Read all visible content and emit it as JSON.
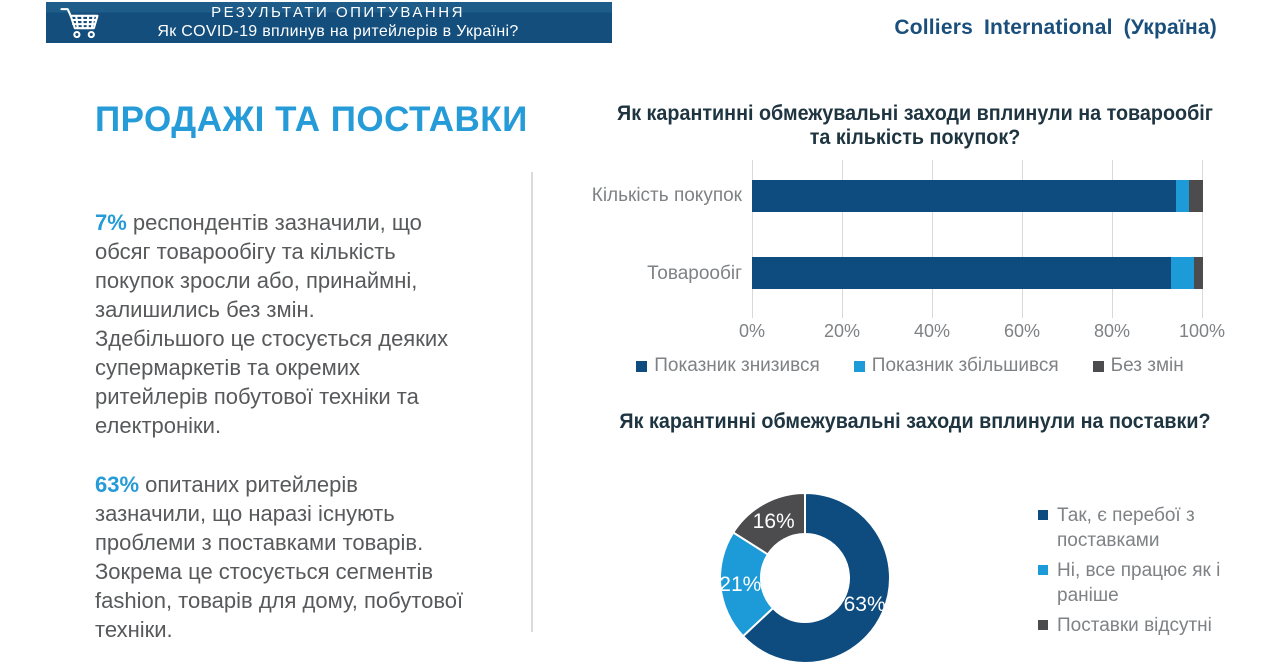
{
  "header": {
    "bar_line1": "РЕЗУЛЬТАТИ  ОПИТУВАННЯ",
    "bar_line2": "Як COVID-19  вплинув на ритейлерів  в Україні?",
    "cart_icon": "shopping-cart-icon",
    "logo": "Colliers  International  (Україна)"
  },
  "left": {
    "title": "ПРОДАЖІ ТА ПОСТАВКИ",
    "para1_highlight": "7%",
    "para1_text": " респондентів зазначили, що\nобсяг товарообігу та кількість\nпокупок зросли або, принаймні,\nзалишились без змін.\nЗдебільшого це стосується деяких\nсупермаркетів та окремих\nритейлерів побутової техніки та\nелектроніки.",
    "para2_highlight": "63%",
    "para2_text": " опитаних ритейлерів\nзазначили, що наразі існують\nпроблеми з поставками товарів.\nЗокрема це стосується сегментів\nfashion, товарів для дому, побутової\nтехніки."
  },
  "chart_data": [
    {
      "type": "bar",
      "orientation": "horizontal",
      "stacked": true,
      "title": "Як карантинні обмежувальні заходи вплинули на товарообіг та кількість покупок?",
      "title_lines": [
        "Як карантинні обмежувальні заходи вплинули на товарообіг",
        "та кількість покупок?"
      ],
      "categories": [
        "Кількість покупок",
        "Товарообіг"
      ],
      "series": [
        {
          "name": "Показник знизився",
          "color": "#0e4c80",
          "values": [
            94,
            93
          ]
        },
        {
          "name": "Показник збільшився",
          "color": "#1c9bd8",
          "values": [
            3,
            5
          ]
        },
        {
          "name": "Без змін",
          "color": "#4c4c4e",
          "values": [
            3,
            2
          ]
        }
      ],
      "x_ticks": [
        "0%",
        "20%",
        "40%",
        "60%",
        "80%",
        "100%"
      ],
      "xlim": [
        0,
        100
      ],
      "grid": true,
      "legend_position": "bottom"
    },
    {
      "type": "pie",
      "donut": true,
      "title": "Як карантинні обмежувальні заходи вплинули на поставки?",
      "slices": [
        {
          "label": "Так, є перебої з поставками",
          "value": 63,
          "color": "#0e4c80"
        },
        {
          "label": "Ні, все працює як і раніше",
          "value": 21,
          "color": "#1c9bd8"
        },
        {
          "label": "Поставки відсутні",
          "value": 16,
          "color": "#4c4c4e"
        }
      ],
      "data_label_format": "percent",
      "legend_position": "right"
    }
  ],
  "colors": {
    "header_blue": "#134e7c",
    "accent_blue": "#259bd8",
    "logo_blue": "#1a4e7b",
    "dark_series": "#0e4c80",
    "light_series": "#1c9bd8",
    "gray_series": "#4c4c4e",
    "body_text": "#58595b",
    "muted_text": "#7f8285",
    "grid": "#d9d9d9",
    "chart_title": "#1e3541"
  }
}
